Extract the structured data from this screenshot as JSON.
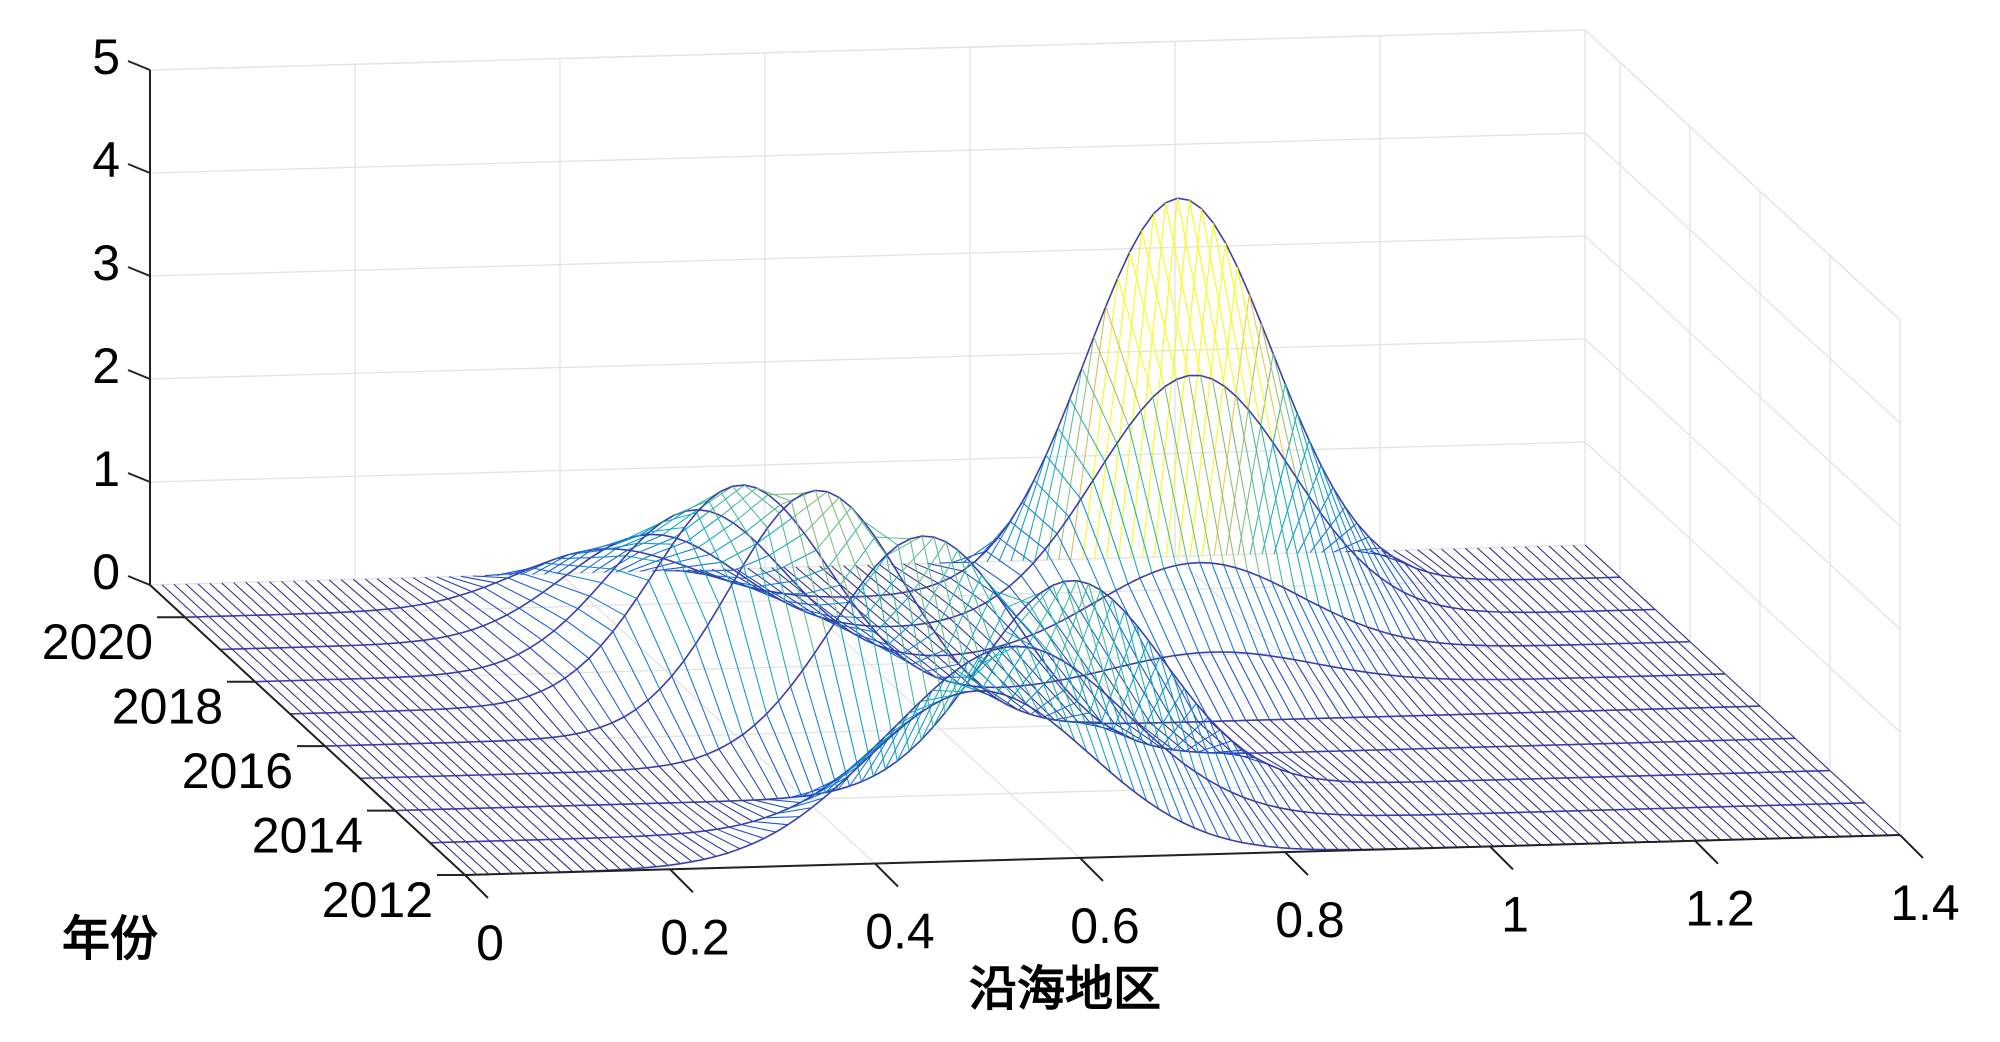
{
  "chart_data": {
    "type": "surface",
    "style": "mesh",
    "colormap": "parula",
    "grid": true,
    "xlabel": "沿海地区",
    "ylabel": "年份",
    "zlabel": "",
    "xlim": [
      0,
      1.4
    ],
    "ylim": [
      2012,
      2021
    ],
    "zlim": [
      0,
      5
    ],
    "x_ticks": [
      0,
      0.2,
      0.4,
      0.6,
      0.8,
      1,
      1.2,
      1.4
    ],
    "x_tick_labels": [
      "0",
      "0.2",
      "0.4",
      "0.6",
      "0.8",
      "1",
      "1.2",
      "1.4"
    ],
    "y_ticks": [
      2012,
      2014,
      2016,
      2018,
      2020
    ],
    "y_tick_labels": [
      "2012",
      "2014",
      "2016",
      "2018",
      "2020"
    ],
    "z_ticks": [
      0,
      1,
      2,
      3,
      4,
      5
    ],
    "z_tick_labels": [
      "0",
      "1",
      "2",
      "3",
      "4",
      "5"
    ],
    "series": [
      {
        "name": "2012",
        "peaks": [
          {
            "center": 0.5,
            "height": 1.65,
            "width": 0.11
          }
        ]
      },
      {
        "name": "2013",
        "peaks": [
          {
            "center": 0.57,
            "height": 1.75,
            "width": 0.11
          }
        ]
      },
      {
        "name": "2014",
        "peaks": [
          {
            "center": 0.66,
            "height": 2.05,
            "width": 0.09
          }
        ]
      },
      {
        "name": "2015",
        "peaks": [
          {
            "center": 0.55,
            "height": 2.2,
            "width": 0.09
          }
        ]
      },
      {
        "name": "2016",
        "peaks": [
          {
            "center": 0.48,
            "height": 2.35,
            "width": 0.085
          }
        ]
      },
      {
        "name": "2017",
        "peaks": [
          {
            "center": 0.44,
            "height": 2.1,
            "width": 0.085
          },
          {
            "center": 0.9,
            "height": 0.35,
            "width": 0.1
          }
        ]
      },
      {
        "name": "2018",
        "peaks": [
          {
            "center": 0.43,
            "height": 1.55,
            "width": 0.085
          },
          {
            "center": 0.92,
            "height": 0.9,
            "width": 0.1
          }
        ]
      },
      {
        "name": "2019",
        "peaks": [
          {
            "center": 0.42,
            "height": 1.0,
            "width": 0.085
          },
          {
            "center": 0.95,
            "height": 2.4,
            "width": 0.095
          }
        ]
      },
      {
        "name": "2020",
        "peaks": [
          {
            "center": 0.41,
            "height": 0.55,
            "width": 0.085
          },
          {
            "center": 0.97,
            "height": 3.8,
            "width": 0.09
          }
        ]
      }
    ]
  }
}
